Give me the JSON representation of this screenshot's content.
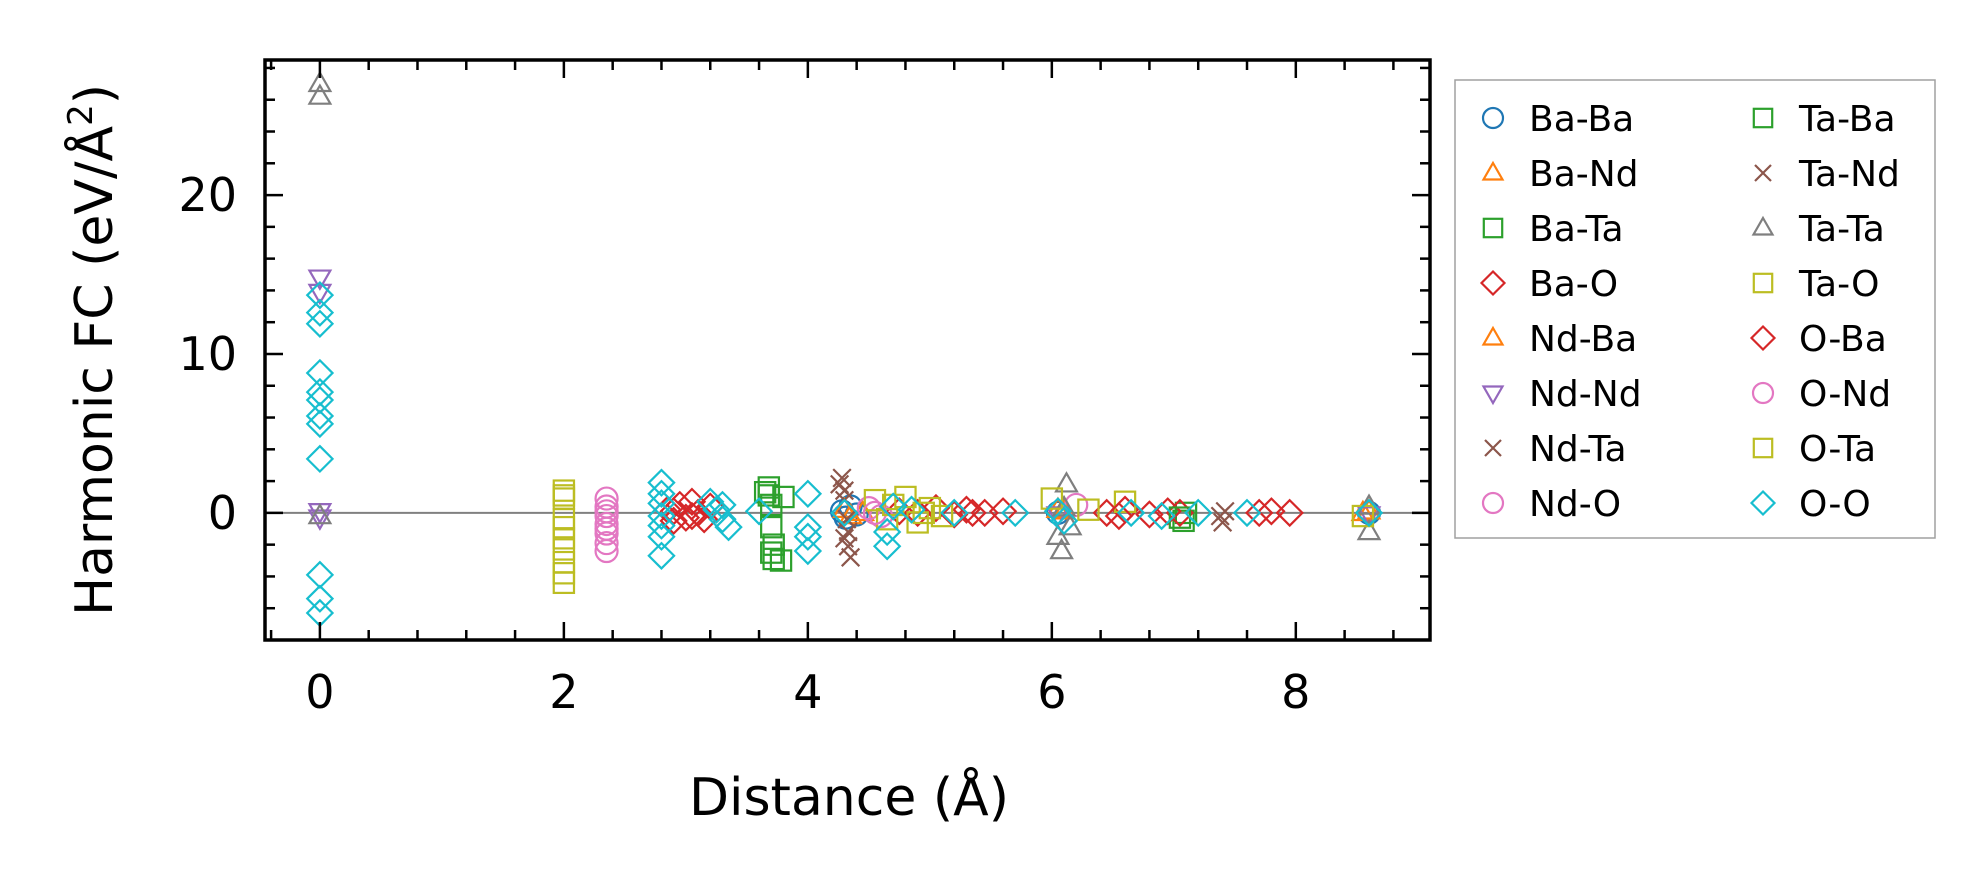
{
  "chart_data": {
    "type": "scatter",
    "xlabel": "Distance (Å)",
    "ylabel_main": "Harmonic FC (eV/Å",
    "ylabel_sup": "2",
    "ylabel_close": ")",
    "xlim": [
      -0.45,
      9.1
    ],
    "ylim": [
      -8,
      28.5
    ],
    "x_ticks": [
      0,
      2,
      4,
      6,
      8
    ],
    "x_tick_labels": [
      "0",
      "2",
      "4",
      "6",
      "8"
    ],
    "y_ticks": [
      0,
      10,
      20
    ],
    "y_tick_labels": [
      "0",
      "10",
      "20"
    ],
    "zero_line": true,
    "grid": false,
    "legend_placement": "outside-right",
    "legend_columns": 2,
    "series": [
      {
        "name": "Ba-Ba",
        "marker": "circle",
        "color": "#1f77b4",
        "points": [
          [
            4.28,
            0.1
          ],
          [
            4.31,
            -0.3
          ],
          [
            4.35,
            0.4
          ],
          [
            4.4,
            -0.1
          ],
          [
            6.05,
            0.0
          ],
          [
            8.6,
            0.0
          ]
        ]
      },
      {
        "name": "Ba-Nd",
        "marker": "triangle-up",
        "color": "#ff7f0e",
        "points": [
          [
            4.3,
            0.2
          ],
          [
            4.45,
            0.0
          ],
          [
            6.1,
            0.1
          ],
          [
            8.6,
            0.1
          ]
        ]
      },
      {
        "name": "Ba-Ta",
        "marker": "square",
        "color": "#2ca02c",
        "points": [
          [
            3.68,
            1.6
          ],
          [
            3.68,
            1.1
          ],
          [
            3.7,
            0.5
          ],
          [
            3.7,
            -0.9
          ],
          [
            3.72,
            -2.0
          ],
          [
            3.72,
            -2.9
          ],
          [
            3.78,
            -3.0
          ],
          [
            3.8,
            1.0
          ],
          [
            7.08,
            -0.5
          ],
          [
            7.1,
            0.0
          ]
        ]
      },
      {
        "name": "Ba-O",
        "marker": "diamond",
        "color": "#d62728",
        "points": [
          [
            2.85,
            0.2
          ],
          [
            2.9,
            -0.5
          ],
          [
            2.95,
            0.5
          ],
          [
            3.0,
            -0.3
          ],
          [
            3.05,
            0.7
          ],
          [
            3.1,
            0.0
          ],
          [
            3.15,
            -0.4
          ],
          [
            3.2,
            0.4
          ],
          [
            4.75,
            0.1
          ],
          [
            4.9,
            0.0
          ],
          [
            5.05,
            0.3
          ],
          [
            5.2,
            -0.1
          ],
          [
            5.3,
            0.2
          ],
          [
            5.45,
            0.0
          ],
          [
            5.6,
            0.1
          ],
          [
            6.45,
            0.0
          ],
          [
            6.6,
            0.2
          ],
          [
            6.8,
            -0.1
          ],
          [
            6.95,
            0.1
          ],
          [
            7.05,
            0.0
          ],
          [
            7.7,
            0.0
          ],
          [
            7.8,
            0.1
          ],
          [
            7.95,
            0.0
          ]
        ]
      },
      {
        "name": "Nd-Ba",
        "marker": "triangle-up",
        "color": "#ff7f0e",
        "points": [
          [
            4.35,
            -0.2
          ],
          [
            6.05,
            0.2
          ],
          [
            8.55,
            0.0
          ]
        ]
      },
      {
        "name": "Nd-Nd",
        "marker": "triangle-down",
        "color": "#9467bd",
        "points": [
          [
            0.0,
            14.8
          ],
          [
            0.0,
            13.9
          ],
          [
            0.0,
            -0.3
          ],
          [
            0.0,
            0.1
          ],
          [
            6.05,
            -0.1
          ],
          [
            8.6,
            -0.1
          ]
        ]
      },
      {
        "name": "Nd-Ta",
        "marker": "cross",
        "color": "#8c564b",
        "points": [
          [
            4.28,
            2.2
          ],
          [
            4.3,
            1.4
          ],
          [
            4.3,
            0.8
          ],
          [
            4.32,
            -0.4
          ],
          [
            4.33,
            -1.2
          ],
          [
            4.33,
            -2.1
          ],
          [
            4.35,
            -2.8
          ],
          [
            7.4,
            -0.6
          ],
          [
            7.42,
            0.1
          ]
        ]
      },
      {
        "name": "Nd-O",
        "marker": "circle",
        "color": "#e377c2",
        "points": [
          [
            2.35,
            0.9
          ],
          [
            2.35,
            0.4
          ],
          [
            2.35,
            -0.2
          ],
          [
            2.35,
            -0.7
          ],
          [
            2.35,
            -1.3
          ],
          [
            2.35,
            -1.9
          ],
          [
            2.35,
            -2.4
          ],
          [
            4.5,
            0.3
          ],
          [
            4.6,
            -0.2
          ],
          [
            6.2,
            0.5
          ]
        ]
      },
      {
        "name": "Ta-Ba",
        "marker": "square",
        "color": "#2ca02c",
        "points": [
          [
            3.65,
            1.3
          ],
          [
            3.7,
            -2.5
          ],
          [
            7.05,
            -0.3
          ]
        ]
      },
      {
        "name": "Ta-Nd",
        "marker": "cross",
        "color": "#8c564b",
        "points": [
          [
            4.26,
            1.8
          ],
          [
            4.3,
            -1.6
          ],
          [
            7.38,
            -0.2
          ]
        ]
      },
      {
        "name": "Ta-Ta",
        "marker": "triangle-up",
        "color": "#7f7f7f",
        "points": [
          [
            0.0,
            27.0
          ],
          [
            0.0,
            26.2
          ],
          [
            0.0,
            -0.2
          ],
          [
            6.05,
            -1.5
          ],
          [
            6.08,
            -2.4
          ],
          [
            6.1,
            0.3
          ],
          [
            6.12,
            1.8
          ],
          [
            6.15,
            -0.9
          ],
          [
            8.6,
            -1.2
          ],
          [
            8.6,
            0.4
          ]
        ]
      },
      {
        "name": "Ta-O",
        "marker": "square",
        "color": "#bcbd22",
        "points": [
          [
            2.0,
            1.4
          ],
          [
            2.0,
            0.9
          ],
          [
            2.0,
            -0.9
          ],
          [
            2.0,
            -1.6
          ],
          [
            2.0,
            -2.3
          ],
          [
            2.0,
            -3.1
          ],
          [
            2.0,
            -3.8
          ],
          [
            2.0,
            -4.4
          ],
          [
            4.55,
            0.8
          ],
          [
            4.65,
            -0.4
          ],
          [
            4.8,
            1.0
          ],
          [
            4.9,
            -0.6
          ],
          [
            5.0,
            0.3
          ],
          [
            5.1,
            -0.2
          ],
          [
            6.0,
            0.9
          ],
          [
            6.3,
            0.2
          ],
          [
            6.6,
            0.7
          ],
          [
            8.55,
            -0.2
          ]
        ]
      },
      {
        "name": "O-Ba",
        "marker": "diamond",
        "color": "#d62728",
        "points": [
          [
            2.9,
            0.1
          ],
          [
            3.05,
            -0.2
          ],
          [
            5.35,
            0.0
          ],
          [
            6.55,
            -0.2
          ]
        ]
      },
      {
        "name": "O-Nd",
        "marker": "circle",
        "color": "#e377c2",
        "points": [
          [
            2.35,
            0.1
          ],
          [
            2.35,
            -1.0
          ],
          [
            4.55,
            0.0
          ]
        ]
      },
      {
        "name": "O-Ta",
        "marker": "square",
        "color": "#bcbd22",
        "points": [
          [
            2.0,
            1.1
          ],
          [
            2.0,
            -0.4
          ],
          [
            4.7,
            0.5
          ],
          [
            4.95,
            0.0
          ]
        ]
      },
      {
        "name": "O-O",
        "marker": "diamond",
        "color": "#17becf",
        "points": [
          [
            0.0,
            13.7
          ],
          [
            0.0,
            12.6
          ],
          [
            0.0,
            11.9
          ],
          [
            0.0,
            8.8
          ],
          [
            0.0,
            7.6
          ],
          [
            0.0,
            7.1
          ],
          [
            0.0,
            6.1
          ],
          [
            0.0,
            5.6
          ],
          [
            0.0,
            3.4
          ],
          [
            0.0,
            -3.9
          ],
          [
            0.0,
            -5.4
          ],
          [
            0.0,
            -6.3
          ],
          [
            2.8,
            1.9
          ],
          [
            2.8,
            1.2
          ],
          [
            2.8,
            0.6
          ],
          [
            2.8,
            -0.2
          ],
          [
            2.8,
            -0.8
          ],
          [
            2.8,
            -1.5
          ],
          [
            2.8,
            -2.7
          ],
          [
            3.2,
            0.7
          ],
          [
            3.25,
            0.2
          ],
          [
            3.3,
            -0.4
          ],
          [
            3.35,
            -0.9
          ],
          [
            3.3,
            0.5
          ],
          [
            3.6,
            0.1
          ],
          [
            4.0,
            1.2
          ],
          [
            4.0,
            -0.9
          ],
          [
            4.0,
            -1.5
          ],
          [
            4.0,
            -2.4
          ],
          [
            4.3,
            0.0
          ],
          [
            4.65,
            -1.2
          ],
          [
            4.65,
            -2.1
          ],
          [
            4.7,
            0.4
          ],
          [
            4.85,
            0.2
          ],
          [
            5.2,
            0.0
          ],
          [
            5.7,
            0.0
          ],
          [
            6.05,
            0.1
          ],
          [
            6.1,
            -0.5
          ],
          [
            6.65,
            0.0
          ],
          [
            6.9,
            -0.2
          ],
          [
            7.2,
            0.0
          ],
          [
            7.6,
            0.0
          ],
          [
            8.6,
            0.0
          ]
        ]
      }
    ]
  }
}
